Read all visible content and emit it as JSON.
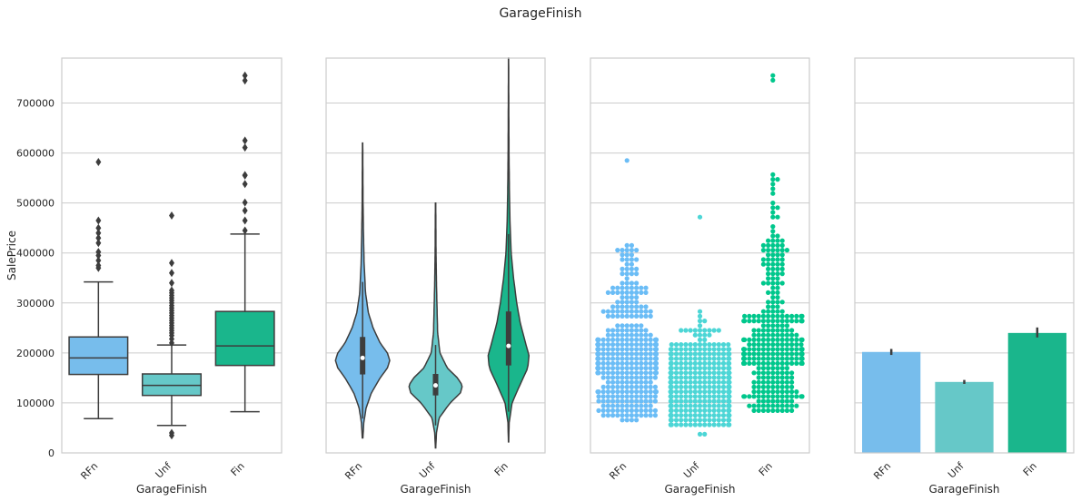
{
  "figure_title": "GarageFinish",
  "colors": {
    "RFn": "#77bdec",
    "Unf": "#66c8c8",
    "Fin": "#1ab68c",
    "RFn_swarm": "#6bbdf6",
    "Unf_swarm": "#4dd6d6",
    "Fin_swarm": "#00c78c",
    "dark": "#3d3d3d",
    "grid": "#cccccc"
  },
  "chart_data": [
    {
      "type": "box",
      "categories": [
        "RFn",
        "Unf",
        "Fin"
      ],
      "xlabel": "GarageFinish",
      "ylabel": "SalePrice",
      "ylim": [
        0,
        790000
      ],
      "yticks": [
        0,
        100000,
        200000,
        300000,
        400000,
        500000,
        600000,
        700000
      ],
      "ytick_labels": [
        "0",
        "100000",
        "200000",
        "300000",
        "400000",
        "500000",
        "600000",
        "700000"
      ],
      "grid": true,
      "boxes": [
        {
          "category": "RFn",
          "whisker_low": 68500,
          "q1": 157000,
          "median": 190000,
          "q3": 232000,
          "whisker_high": 342000,
          "outliers": [
            370000,
            375000,
            385000,
            395000,
            402000,
            420000,
            430000,
            440000,
            450000,
            465000,
            582000
          ]
        },
        {
          "category": "Unf",
          "whisker_low": 55000,
          "q1": 115000,
          "median": 135000,
          "q3": 158000,
          "whisker_high": 216000,
          "outliers": [
            35000,
            40000,
            220000,
            228000,
            235000,
            240000,
            245000,
            250000,
            255000,
            260000,
            265000,
            270000,
            275000,
            280000,
            285000,
            290000,
            295000,
            300000,
            305000,
            310000,
            315000,
            320000,
            325000,
            340000,
            360000,
            380000,
            475000
          ]
        },
        {
          "category": "Fin",
          "whisker_low": 82500,
          "q1": 175000,
          "median": 214000,
          "q3": 283000,
          "whisker_high": 438000,
          "outliers": [
            445000,
            465000,
            485000,
            501000,
            538000,
            555000,
            556000,
            611000,
            625000,
            745000,
            755000
          ]
        }
      ]
    },
    {
      "type": "violin",
      "categories": [
        "RFn",
        "Unf",
        "Fin"
      ],
      "xlabel": "GarageFinish",
      "ylim": [
        0,
        790000
      ],
      "grid": true,
      "violins": [
        {
          "category": "RFn",
          "min": 30000,
          "max": 620000,
          "q1": 157000,
          "median": 190000,
          "q3": 232000,
          "whisker_low": 68500,
          "whisker_high": 342000,
          "profile": [
            [
              30000,
              0.01
            ],
            [
              60000,
              0.04
            ],
            [
              90000,
              0.12
            ],
            [
              120000,
              0.3
            ],
            [
              150000,
              0.6
            ],
            [
              170000,
              0.85
            ],
            [
              185000,
              0.93
            ],
            [
              200000,
              0.85
            ],
            [
              220000,
              0.6
            ],
            [
              250000,
              0.36
            ],
            [
              280000,
              0.2
            ],
            [
              320000,
              0.1
            ],
            [
              380000,
              0.05
            ],
            [
              440000,
              0.03
            ],
            [
              500000,
              0.015
            ],
            [
              560000,
              0.01
            ],
            [
              620000,
              0.005
            ]
          ]
        },
        {
          "category": "Unf",
          "min": 10000,
          "max": 500000,
          "q1": 115000,
          "median": 135000,
          "q3": 158000,
          "whisker_low": 55000,
          "whisker_high": 216000,
          "profile": [
            [
              10000,
              0.005
            ],
            [
              40000,
              0.03
            ],
            [
              70000,
              0.12
            ],
            [
              100000,
              0.5
            ],
            [
              120000,
              0.85
            ],
            [
              135000,
              0.92
            ],
            [
              150000,
              0.75
            ],
            [
              170000,
              0.4
            ],
            [
              200000,
              0.15
            ],
            [
              240000,
              0.07
            ],
            [
              290000,
              0.05
            ],
            [
              340000,
              0.03
            ],
            [
              400000,
              0.015
            ],
            [
              460000,
              0.01
            ],
            [
              500000,
              0.005
            ]
          ]
        },
        {
          "category": "Fin",
          "min": 22000,
          "max": 790000,
          "q1": 175000,
          "median": 214000,
          "q3": 283000,
          "whisker_low": 82500,
          "whisker_high": 438000,
          "profile": [
            [
              22000,
              0.005
            ],
            [
              60000,
              0.02
            ],
            [
              100000,
              0.12
            ],
            [
              140000,
              0.42
            ],
            [
              170000,
              0.66
            ],
            [
              195000,
              0.7
            ],
            [
              220000,
              0.58
            ],
            [
              260000,
              0.4
            ],
            [
              300000,
              0.28
            ],
            [
              350000,
              0.17
            ],
            [
              400000,
              0.09
            ],
            [
              460000,
              0.05
            ],
            [
              520000,
              0.03
            ],
            [
              600000,
              0.015
            ],
            [
              700000,
              0.008
            ],
            [
              790000,
              0.003
            ]
          ]
        }
      ]
    },
    {
      "type": "swarm",
      "categories": [
        "RFn",
        "Unf",
        "Fin"
      ],
      "xlabel": "GarageFinish",
      "ylim": [
        0,
        790000
      ],
      "grid": true,
      "counts": [
        422,
        605,
        352
      ],
      "extremes": {
        "RFn": [
          68500,
          72000,
          85000,
          582000
        ],
        "Unf": [
          35000,
          40000,
          475000
        ],
        "Fin": [
          82500,
          745000,
          755000
        ]
      }
    },
    {
      "type": "bar",
      "categories": [
        "RFn",
        "Unf",
        "Fin"
      ],
      "xlabel": "GarageFinish",
      "values": [
        202000,
        142000,
        240000
      ],
      "ci": [
        [
          196000,
          208000
        ],
        [
          138000,
          146000
        ],
        [
          231000,
          251000
        ]
      ],
      "ylim": [
        0,
        790000
      ],
      "grid": true
    }
  ]
}
